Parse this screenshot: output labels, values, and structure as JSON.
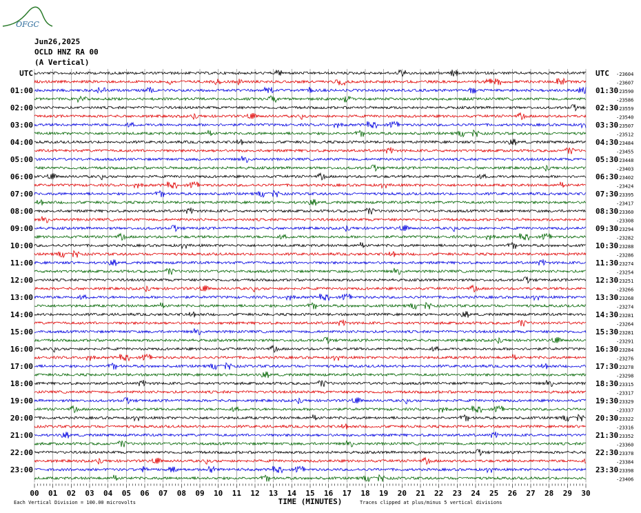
{
  "logo": "OFGC",
  "header": {
    "date": "Jun26,2025",
    "station": "OCLD HNZ RA 00",
    "component": "(A Vertical)"
  },
  "trace_colors": [
    "#000000",
    "#e00000",
    "#0000e0",
    "#006400"
  ],
  "traces": [
    {
      "left": "UTC",
      "right": "UTC",
      "offset": "-23604"
    },
    {
      "left": null,
      "right": null,
      "offset": "-23607"
    },
    {
      "left": "01:00",
      "right": "01:30",
      "offset": "-23590"
    },
    {
      "left": null,
      "right": null,
      "offset": "-23586"
    },
    {
      "left": "02:00",
      "right": "02:30",
      "offset": "-23559"
    },
    {
      "left": null,
      "right": null,
      "offset": "-23540"
    },
    {
      "left": "03:00",
      "right": "03:30",
      "offset": "-23507"
    },
    {
      "left": null,
      "right": null,
      "offset": "-23512"
    },
    {
      "left": "04:00",
      "right": "04:30",
      "offset": "-23484"
    },
    {
      "left": null,
      "right": null,
      "offset": "-23455"
    },
    {
      "left": "05:00",
      "right": "05:30",
      "offset": "-23448"
    },
    {
      "left": null,
      "right": null,
      "offset": "-23403"
    },
    {
      "left": "06:00",
      "right": "06:30",
      "offset": "-23402"
    },
    {
      "left": null,
      "right": null,
      "offset": "-23424"
    },
    {
      "left": "07:00",
      "right": "07:30",
      "offset": "-23395"
    },
    {
      "left": null,
      "right": null,
      "offset": "-23417"
    },
    {
      "left": "08:00",
      "right": "08:30",
      "offset": "-23360"
    },
    {
      "left": null,
      "right": null,
      "offset": "-23308"
    },
    {
      "left": "09:00",
      "right": "09:30",
      "offset": "-23294"
    },
    {
      "left": null,
      "right": null,
      "offset": "-23282"
    },
    {
      "left": "10:00",
      "right": "10:30",
      "offset": "-23288"
    },
    {
      "left": null,
      "right": null,
      "offset": "-23286"
    },
    {
      "left": "11:00",
      "right": "11:30",
      "offset": "-23274"
    },
    {
      "left": null,
      "right": null,
      "offset": "-23254"
    },
    {
      "left": "12:00",
      "right": "12:30",
      "offset": "-23251"
    },
    {
      "left": null,
      "right": null,
      "offset": "-23266"
    },
    {
      "left": "13:00",
      "right": "13:30",
      "offset": "-23268"
    },
    {
      "left": null,
      "right": null,
      "offset": "-23274"
    },
    {
      "left": "14:00",
      "right": "14:30",
      "offset": "-23281"
    },
    {
      "left": null,
      "right": null,
      "offset": "-23264"
    },
    {
      "left": "15:00",
      "right": "15:30",
      "offset": "-23281"
    },
    {
      "left": null,
      "right": null,
      "offset": "-23291"
    },
    {
      "left": "16:00",
      "right": "16:30",
      "offset": "-23284"
    },
    {
      "left": null,
      "right": null,
      "offset": "-23276"
    },
    {
      "left": "17:00",
      "right": "17:30",
      "offset": "-23278"
    },
    {
      "left": null,
      "right": null,
      "offset": "-23298"
    },
    {
      "left": "18:00",
      "right": "18:30",
      "offset": "-23315"
    },
    {
      "left": null,
      "right": null,
      "offset": "-23317"
    },
    {
      "left": "19:00",
      "right": "19:30",
      "offset": "-23329"
    },
    {
      "left": null,
      "right": null,
      "offset": "-23337"
    },
    {
      "left": "20:00",
      "right": "20:30",
      "offset": "-23322"
    },
    {
      "left": null,
      "right": null,
      "offset": "-23316"
    },
    {
      "left": "21:00",
      "right": "21:30",
      "offset": "-23352"
    },
    {
      "left": null,
      "right": null,
      "offset": "-23360"
    },
    {
      "left": "22:00",
      "right": "22:30",
      "offset": "-23378"
    },
    {
      "left": null,
      "right": null,
      "offset": "-23384"
    },
    {
      "left": "23:00",
      "right": "23:30",
      "offset": "-23398"
    },
    {
      "left": null,
      "right": null,
      "offset": "-23406"
    }
  ],
  "x_axis": {
    "title": "TIME (MINUTES)",
    "ticks": [
      "00",
      "01",
      "02",
      "03",
      "04",
      "05",
      "06",
      "07",
      "08",
      "09",
      "10",
      "11",
      "12",
      "13",
      "14",
      "15",
      "16",
      "17",
      "18",
      "19",
      "20",
      "21",
      "22",
      "23",
      "24",
      "25",
      "26",
      "27",
      "28",
      "29",
      "30"
    ]
  },
  "footer": {
    "scale": "Each Vertical Division =  100.00 microvolts",
    "clip": "Traces clipped at plus/minus 5 vertical divisions"
  }
}
